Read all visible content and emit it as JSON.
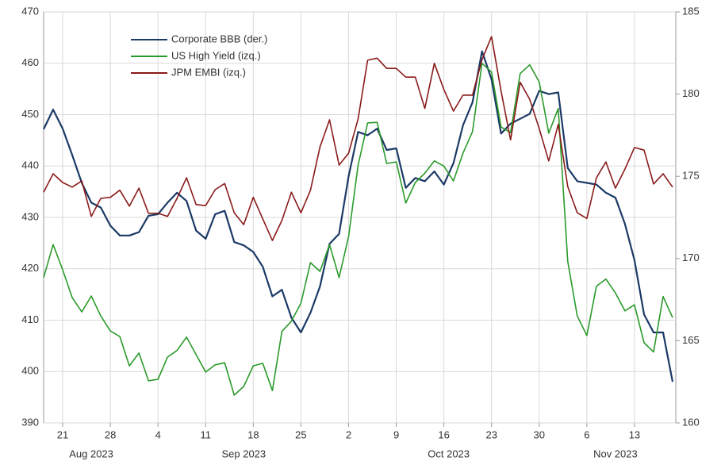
{
  "chart_data": {
    "type": "line",
    "categories": [
      "2023-08-17",
      "2023-08-18",
      "2023-08-21",
      "2023-08-22",
      "2023-08-23",
      "2023-08-24",
      "2023-08-25",
      "2023-08-28",
      "2023-08-29",
      "2023-08-30",
      "2023-08-31",
      "2023-09-01",
      "2023-09-04",
      "2023-09-05",
      "2023-09-06",
      "2023-09-07",
      "2023-09-08",
      "2023-09-11",
      "2023-09-12",
      "2023-09-13",
      "2023-09-14",
      "2023-09-15",
      "2023-09-18",
      "2023-09-19",
      "2023-09-20",
      "2023-09-21",
      "2023-09-22",
      "2023-09-25",
      "2023-09-26",
      "2023-09-27",
      "2023-09-28",
      "2023-09-29",
      "2023-10-02",
      "2023-10-03",
      "2023-10-04",
      "2023-10-05",
      "2023-10-06",
      "2023-10-09",
      "2023-10-10",
      "2023-10-11",
      "2023-10-12",
      "2023-10-13",
      "2023-10-16",
      "2023-10-17",
      "2023-10-18",
      "2023-10-19",
      "2023-10-20",
      "2023-10-23",
      "2023-10-24",
      "2023-10-25",
      "2023-10-26",
      "2023-10-27",
      "2023-10-30",
      "2023-10-31",
      "2023-11-01",
      "2023-11-02",
      "2023-11-03",
      "2023-11-06",
      "2023-11-07",
      "2023-11-08",
      "2023-11-09",
      "2023-11-10",
      "2023-11-13",
      "2023-11-14",
      "2023-11-15",
      "2023-11-16",
      "2023-11-17"
    ],
    "series": [
      {
        "name": "Corporate BBB (der.)",
        "color": "#1b3a66",
        "axis": "y2",
        "values": [
          177.86,
          179.06,
          177.9,
          176.3,
          174.6,
          173.4,
          173.1,
          172.0,
          171.4,
          171.4,
          171.6,
          172.6,
          172.7,
          173.4,
          174.0,
          173.5,
          171.7,
          171.2,
          172.7,
          172.9,
          171.0,
          170.8,
          170.4,
          169.5,
          167.7,
          168.1,
          166.4,
          165.5,
          166.7,
          168.3,
          170.9,
          171.5,
          175.0,
          177.7,
          177.5,
          177.9,
          176.6,
          176.7,
          174.3,
          174.9,
          174.7,
          175.3,
          174.5,
          175.8,
          178.1,
          179.5,
          182.6,
          180.9,
          177.6,
          178.2,
          178.5,
          178.8,
          180.2,
          180.0,
          180.1,
          175.5,
          174.7,
          174.6,
          174.5,
          174.0,
          173.7,
          172.1,
          169.9,
          166.6,
          165.5,
          165.5,
          162.5
        ]
      },
      {
        "name": "US High Yield (izq.)",
        "color": "#2a9a2a",
        "values": [
          418.3,
          424.7,
          419.8,
          414.4,
          411.6,
          414.7,
          410.8,
          407.9,
          406.8,
          401.1,
          403.6,
          398.2,
          398.5,
          402.8,
          404.1,
          406.7,
          403.3,
          399.9,
          401.3,
          401.7,
          395.4,
          397.1,
          401.1,
          401.6,
          396.3,
          407.8,
          409.8,
          413.3,
          421.2,
          419.5,
          424.7,
          418.3,
          426.3,
          440.2,
          448.4,
          448.5,
          440.5,
          440.8,
          432.8,
          436.8,
          438.6,
          441.0,
          440.0,
          437.1,
          442.5,
          446.7,
          460.0,
          458.3,
          447.6,
          446.5,
          458.0,
          459.7,
          456.4,
          446.4,
          451.2,
          421.4,
          410.8,
          407.0,
          416.6,
          418.0,
          415.3,
          411.8,
          413.0,
          405.6,
          403.8,
          414.6,
          410.5
        ]
      },
      {
        "name": "JPM EMBI (izq.)",
        "color": "#8a1a1a",
        "values": [
          434.9,
          438.5,
          436.8,
          435.9,
          437.1,
          430.2,
          433.7,
          433.9,
          435.3,
          432.2,
          435.7,
          430.8,
          430.8,
          430.2,
          433.7,
          437.7,
          432.5,
          432.3,
          435.4,
          436.6,
          430.9,
          428.6,
          433.9,
          429.7,
          425.5,
          429.4,
          434.9,
          430.9,
          435.3,
          443.7,
          449.0,
          440.2,
          442.5,
          449.2,
          460.6,
          461.0,
          459.0,
          459.0,
          457.3,
          457.3,
          451.2,
          460.0,
          454.9,
          450.7,
          453.8,
          453.8,
          460.7,
          465.2,
          454.6,
          445.1,
          456.3,
          453.0,
          447.3,
          441.0,
          448.1,
          436.0,
          430.9,
          429.8,
          437.7,
          440.8,
          435.7,
          439.4,
          443.6,
          443.1,
          436.5,
          438.5,
          435.9
        ]
      }
    ],
    "xticks": [
      {
        "value": "2023-08-21",
        "label": "21"
      },
      {
        "value": "2023-08-28",
        "label": "28"
      },
      {
        "value": "2023-09-04",
        "label": "4"
      },
      {
        "value": "2023-09-11",
        "label": "11"
      },
      {
        "value": "2023-09-18",
        "label": "18"
      },
      {
        "value": "2023-09-25",
        "label": "25"
      },
      {
        "value": "2023-10-02",
        "label": "2"
      },
      {
        "value": "2023-10-09",
        "label": "9"
      },
      {
        "value": "2023-10-16",
        "label": "16"
      },
      {
        "value": "2023-10-23",
        "label": "23"
      },
      {
        "value": "2023-10-30",
        "label": "30"
      },
      {
        "value": "2023-11-06",
        "label": "6"
      },
      {
        "value": "2023-11-13",
        "label": "13"
      }
    ],
    "xmonths": [
      "Aug 2023",
      "Sep 2023",
      "Oct 2023",
      "Nov 2023"
    ],
    "ylim": [
      390,
      470
    ],
    "yticks": [
      390,
      400,
      410,
      420,
      430,
      440,
      450,
      460,
      470
    ],
    "y2lim": [
      160,
      185
    ],
    "y2ticks": [
      160,
      165,
      170,
      175,
      180,
      185
    ],
    "grid": true,
    "legend": "upper left"
  }
}
